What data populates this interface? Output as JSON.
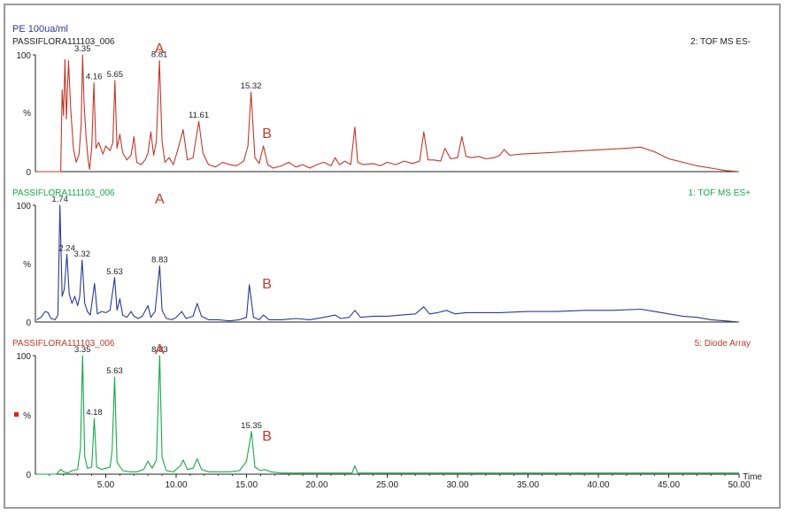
{
  "header": {
    "sample_title": "PE 100ua/ml"
  },
  "colors": {
    "red": "#c0392b",
    "blue": "#2b3a8f",
    "green": "#16a84a",
    "axis": "#222222",
    "frame": "#9a9a9a"
  },
  "x_axis": {
    "label": "Time",
    "ticks": [
      "5.00",
      "10.00",
      "15.00",
      "20.00",
      "25.00",
      "30.00",
      "35.00",
      "40.00",
      "45.00",
      "50.00"
    ],
    "range": [
      0,
      50
    ]
  },
  "chart_data": [
    {
      "type": "line",
      "sample": "PASSIFLORA111103_006",
      "detector": "2: TOF MS ES-",
      "y_tick_top": "100",
      "y_tick_mid": "%",
      "y_tick_bottom": "0",
      "color": "#c0392b",
      "ylim": [
        0,
        100
      ],
      "peak_labels": [
        {
          "x": 3.35,
          "y": 100,
          "text": "3.35"
        },
        {
          "x": 4.16,
          "y": 76,
          "text": "4.16"
        },
        {
          "x": 5.65,
          "y": 78,
          "text": "5.65"
        },
        {
          "x": 8.81,
          "y": 95,
          "text": "8.81"
        },
        {
          "x": 15.32,
          "y": 68,
          "text": "15.32"
        },
        {
          "x": 11.61,
          "y": 43,
          "text": "11.61"
        }
      ],
      "annotations": [
        {
          "x": 8.81,
          "text": "A"
        },
        {
          "x": 16.2,
          "text": "B"
        }
      ],
      "points": [
        [
          0.1,
          0
        ],
        [
          1.5,
          0
        ],
        [
          1.8,
          0
        ],
        [
          1.9,
          70
        ],
        [
          2.0,
          48
        ],
        [
          2.1,
          96
        ],
        [
          2.2,
          45
        ],
        [
          2.35,
          95
        ],
        [
          2.5,
          55
        ],
        [
          2.7,
          20
        ],
        [
          2.9,
          8
        ],
        [
          3.1,
          15
        ],
        [
          3.25,
          40
        ],
        [
          3.35,
          100
        ],
        [
          3.45,
          60
        ],
        [
          3.6,
          30
        ],
        [
          3.75,
          10
        ],
        [
          3.85,
          2
        ],
        [
          4.0,
          20
        ],
        [
          4.16,
          76
        ],
        [
          4.3,
          20
        ],
        [
          4.5,
          25
        ],
        [
          4.8,
          15
        ],
        [
          5.0,
          22
        ],
        [
          5.3,
          18
        ],
        [
          5.5,
          25
        ],
        [
          5.65,
          78
        ],
        [
          5.8,
          20
        ],
        [
          6.0,
          32
        ],
        [
          6.2,
          16
        ],
        [
          6.5,
          10
        ],
        [
          6.8,
          14
        ],
        [
          7.0,
          30
        ],
        [
          7.2,
          8
        ],
        [
          7.5,
          6
        ],
        [
          7.8,
          10
        ],
        [
          8.0,
          16
        ],
        [
          8.2,
          34
        ],
        [
          8.4,
          14
        ],
        [
          8.6,
          26
        ],
        [
          8.81,
          95
        ],
        [
          9.0,
          26
        ],
        [
          9.2,
          8
        ],
        [
          9.5,
          12
        ],
        [
          9.8,
          6
        ],
        [
          10.1,
          18
        ],
        [
          10.5,
          36
        ],
        [
          10.8,
          10
        ],
        [
          11.2,
          12
        ],
        [
          11.61,
          43
        ],
        [
          11.9,
          16
        ],
        [
          12.3,
          6
        ],
        [
          12.8,
          4
        ],
        [
          13.3,
          8
        ],
        [
          13.8,
          6
        ],
        [
          14.3,
          5
        ],
        [
          14.8,
          9
        ],
        [
          15.1,
          22
        ],
        [
          15.32,
          68
        ],
        [
          15.6,
          12
        ],
        [
          15.9,
          7
        ],
        [
          16.2,
          22
        ],
        [
          16.5,
          6
        ],
        [
          16.9,
          3
        ],
        [
          17.5,
          5
        ],
        [
          18.0,
          8
        ],
        [
          18.5,
          4
        ],
        [
          19.0,
          6
        ],
        [
          19.5,
          3
        ],
        [
          20.0,
          6
        ],
        [
          20.5,
          8
        ],
        [
          21.0,
          5
        ],
        [
          21.3,
          12
        ],
        [
          21.6,
          6
        ],
        [
          22.0,
          9
        ],
        [
          22.4,
          6
        ],
        [
          22.7,
          38
        ],
        [
          22.9,
          8
        ],
        [
          23.3,
          6
        ],
        [
          24.0,
          7
        ],
        [
          24.5,
          5
        ],
        [
          25.0,
          8
        ],
        [
          25.6,
          6
        ],
        [
          26.2,
          9
        ],
        [
          26.8,
          7
        ],
        [
          27.3,
          9
        ],
        [
          27.6,
          34
        ],
        [
          27.9,
          10
        ],
        [
          28.3,
          10
        ],
        [
          28.8,
          9
        ],
        [
          29.1,
          20
        ],
        [
          29.5,
          11
        ],
        [
          30.0,
          12
        ],
        [
          30.3,
          30
        ],
        [
          30.6,
          13
        ],
        [
          31.0,
          12
        ],
        [
          31.5,
          13
        ],
        [
          32.0,
          11
        ],
        [
          32.6,
          12
        ],
        [
          33.0,
          14
        ],
        [
          33.3,
          19
        ],
        [
          33.7,
          14
        ],
        [
          34.5,
          15
        ],
        [
          36.0,
          16
        ],
        [
          37.5,
          17
        ],
        [
          39.0,
          18
        ],
        [
          40.5,
          19
        ],
        [
          42.0,
          20
        ],
        [
          43.0,
          21
        ],
        [
          44.0,
          17
        ],
        [
          45.0,
          11
        ],
        [
          46.0,
          8
        ],
        [
          47.0,
          5
        ],
        [
          48.0,
          3
        ],
        [
          49.0,
          1
        ],
        [
          50.0,
          0
        ]
      ]
    },
    {
      "type": "line",
      "sample": "PASSIFLORA111103_006",
      "detector": "1: TOF MS ES+",
      "y_tick_top": "100",
      "y_tick_mid": "%",
      "y_tick_bottom": "0",
      "color": "#2b3a8f",
      "ylim": [
        0,
        100
      ],
      "peak_labels": [
        {
          "x": 1.74,
          "y": 100,
          "text": "1.74"
        },
        {
          "x": 2.24,
          "y": 58,
          "text": "2.24"
        },
        {
          "x": 3.32,
          "y": 53,
          "text": "3.32"
        },
        {
          "x": 5.63,
          "y": 38,
          "text": "5.63"
        },
        {
          "x": 8.83,
          "y": 48,
          "text": "8.83"
        }
      ],
      "annotations": [
        {
          "x": 8.83,
          "text": "A"
        },
        {
          "x": 16.2,
          "text": "B"
        }
      ],
      "points": [
        [
          0.1,
          2
        ],
        [
          0.4,
          4
        ],
        [
          0.7,
          9
        ],
        [
          0.9,
          8
        ],
        [
          1.1,
          3
        ],
        [
          1.4,
          2
        ],
        [
          1.6,
          6
        ],
        [
          1.74,
          100
        ],
        [
          1.9,
          22
        ],
        [
          2.05,
          28
        ],
        [
          2.24,
          58
        ],
        [
          2.4,
          24
        ],
        [
          2.6,
          16
        ],
        [
          2.8,
          22
        ],
        [
          3.0,
          14
        ],
        [
          3.15,
          22
        ],
        [
          3.32,
          53
        ],
        [
          3.5,
          16
        ],
        [
          3.7,
          9
        ],
        [
          3.9,
          6
        ],
        [
          4.2,
          33
        ],
        [
          4.4,
          7
        ],
        [
          4.7,
          9
        ],
        [
          5.0,
          8
        ],
        [
          5.3,
          10
        ],
        [
          5.63,
          38
        ],
        [
          5.8,
          10
        ],
        [
          6.0,
          20
        ],
        [
          6.2,
          6
        ],
        [
          6.5,
          4
        ],
        [
          6.8,
          9
        ],
        [
          7.0,
          5
        ],
        [
          7.3,
          3
        ],
        [
          7.6,
          5
        ],
        [
          8.0,
          14
        ],
        [
          8.2,
          4
        ],
        [
          8.5,
          9
        ],
        [
          8.83,
          48
        ],
        [
          9.0,
          10
        ],
        [
          9.3,
          3
        ],
        [
          9.7,
          2
        ],
        [
          10.0,
          4
        ],
        [
          10.4,
          9
        ],
        [
          10.7,
          3
        ],
        [
          11.2,
          5
        ],
        [
          11.5,
          16
        ],
        [
          11.8,
          5
        ],
        [
          12.3,
          2
        ],
        [
          13.0,
          2
        ],
        [
          13.8,
          1
        ],
        [
          14.5,
          2
        ],
        [
          15.0,
          4
        ],
        [
          15.2,
          32
        ],
        [
          15.5,
          4
        ],
        [
          15.9,
          2
        ],
        [
          16.2,
          6
        ],
        [
          16.6,
          2
        ],
        [
          17.5,
          2
        ],
        [
          18.5,
          3
        ],
        [
          19.5,
          2
        ],
        [
          20.5,
          4
        ],
        [
          21.3,
          6
        ],
        [
          21.7,
          3
        ],
        [
          22.3,
          4
        ],
        [
          22.7,
          10
        ],
        [
          23.1,
          4
        ],
        [
          24.0,
          5
        ],
        [
          25.0,
          5
        ],
        [
          26.0,
          6
        ],
        [
          27.0,
          7
        ],
        [
          27.6,
          13
        ],
        [
          28.0,
          7
        ],
        [
          28.6,
          8
        ],
        [
          29.2,
          10
        ],
        [
          29.8,
          7
        ],
        [
          30.6,
          8
        ],
        [
          31.5,
          8
        ],
        [
          33.0,
          8
        ],
        [
          35.0,
          9
        ],
        [
          37.0,
          9
        ],
        [
          39.0,
          10
        ],
        [
          41.0,
          10
        ],
        [
          43.0,
          11
        ],
        [
          44.0,
          9
        ],
        [
          45.0,
          7
        ],
        [
          46.0,
          5
        ],
        [
          47.0,
          4
        ],
        [
          48.0,
          2
        ],
        [
          49.0,
          1
        ],
        [
          50.0,
          0
        ]
      ]
    },
    {
      "type": "line",
      "sample": "PASSIFLORA111103_006",
      "detector": "5: Diode Array",
      "y_tick_top": "100",
      "y_tick_mid": "%",
      "y_tick_bottom": "0",
      "color": "#16a84a",
      "ylim": [
        0,
        100
      ],
      "peak_labels": [
        {
          "x": 3.35,
          "y": 100,
          "text": "3.35"
        },
        {
          "x": 4.18,
          "y": 47,
          "text": "4.18"
        },
        {
          "x": 5.63,
          "y": 82,
          "text": "5.63"
        },
        {
          "x": 8.83,
          "y": 100,
          "text": "8.83"
        },
        {
          "x": 15.35,
          "y": 36,
          "text": "15.35"
        }
      ],
      "annotations": [
        {
          "x": 8.83,
          "text": "A"
        },
        {
          "x": 16.2,
          "text": "B"
        }
      ],
      "points": [
        [
          0.1,
          0
        ],
        [
          1.5,
          0
        ],
        [
          1.8,
          4
        ],
        [
          2.0,
          2
        ],
        [
          2.3,
          1
        ],
        [
          2.6,
          3
        ],
        [
          3.0,
          4
        ],
        [
          3.2,
          22
        ],
        [
          3.35,
          100
        ],
        [
          3.5,
          15
        ],
        [
          3.7,
          5
        ],
        [
          4.0,
          6
        ],
        [
          4.18,
          47
        ],
        [
          4.35,
          6
        ],
        [
          4.7,
          4
        ],
        [
          5.0,
          5
        ],
        [
          5.3,
          6
        ],
        [
          5.45,
          20
        ],
        [
          5.63,
          82
        ],
        [
          5.8,
          10
        ],
        [
          6.2,
          3
        ],
        [
          6.7,
          2
        ],
        [
          7.2,
          2
        ],
        [
          7.7,
          4
        ],
        [
          8.0,
          11
        ],
        [
          8.3,
          5
        ],
        [
          8.6,
          12
        ],
        [
          8.83,
          100
        ],
        [
          9.0,
          14
        ],
        [
          9.3,
          3
        ],
        [
          9.8,
          2
        ],
        [
          10.3,
          7
        ],
        [
          10.5,
          12
        ],
        [
          10.8,
          4
        ],
        [
          11.2,
          5
        ],
        [
          11.5,
          13
        ],
        [
          11.8,
          4
        ],
        [
          12.3,
          2
        ],
        [
          13.0,
          2
        ],
        [
          13.8,
          2
        ],
        [
          14.5,
          3
        ],
        [
          15.0,
          11
        ],
        [
          15.35,
          36
        ],
        [
          15.6,
          6
        ],
        [
          16.0,
          3
        ],
        [
          16.3,
          4
        ],
        [
          16.7,
          2
        ],
        [
          17.5,
          1
        ],
        [
          18.5,
          1
        ],
        [
          20.0,
          1
        ],
        [
          21.5,
          1
        ],
        [
          22.5,
          1
        ],
        [
          22.7,
          7
        ],
        [
          22.9,
          1
        ],
        [
          24.0,
          1
        ],
        [
          26.0,
          1
        ],
        [
          30.0,
          1
        ],
        [
          35.0,
          1
        ],
        [
          40.0,
          1
        ],
        [
          45.0,
          1
        ],
        [
          50.0,
          1
        ]
      ]
    }
  ]
}
